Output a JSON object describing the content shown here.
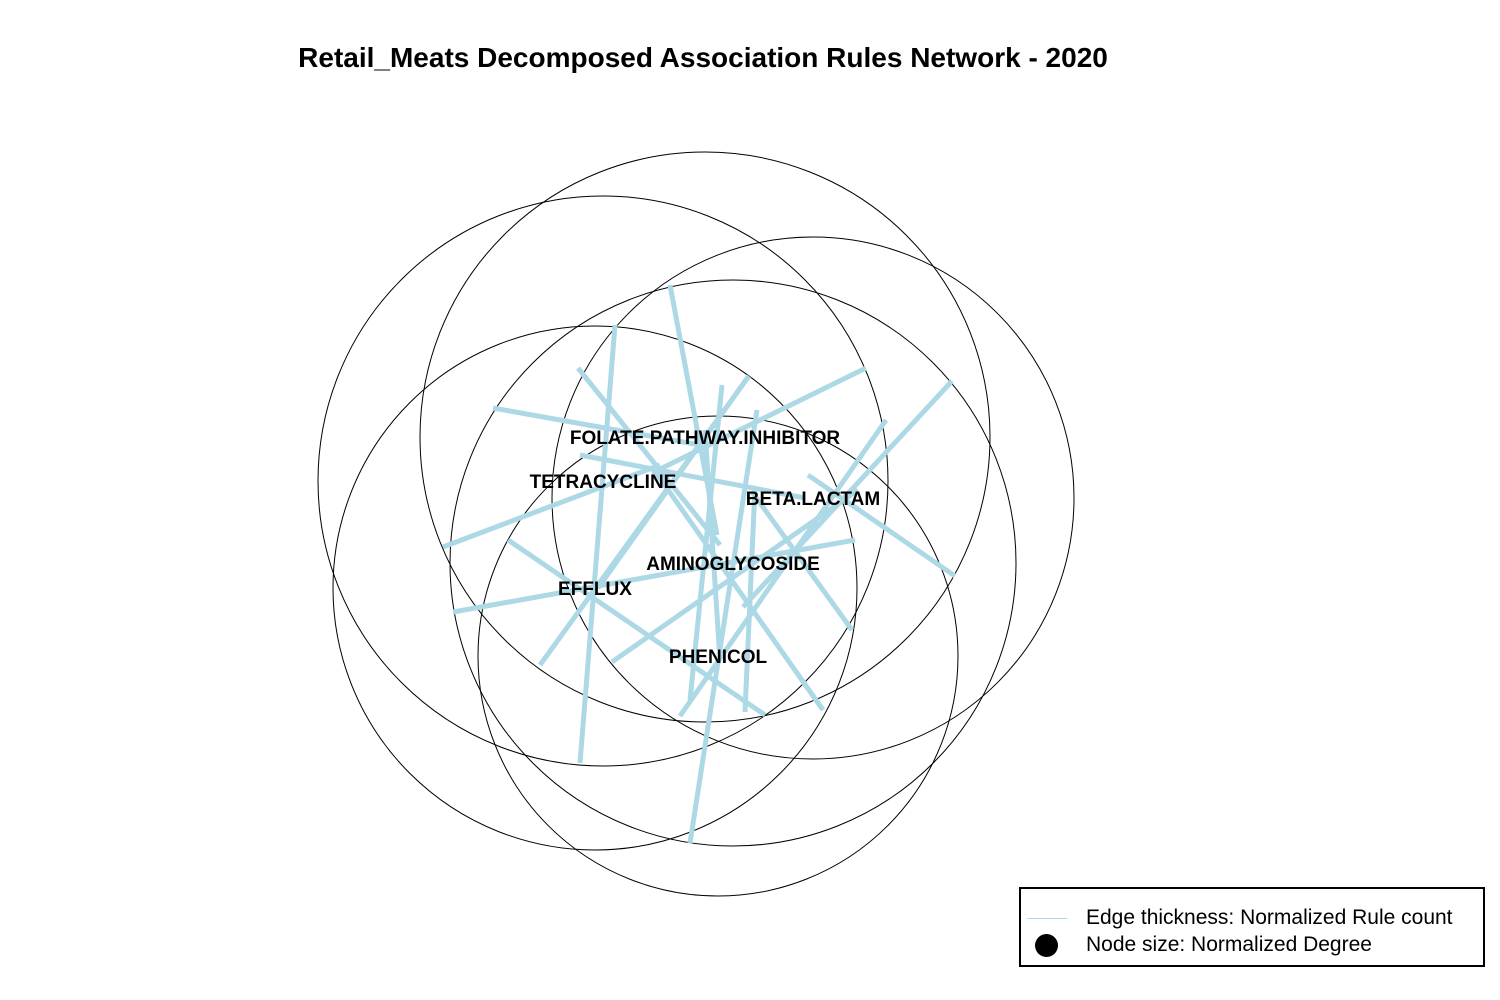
{
  "title": "Retail_Meats Decomposed Association Rules Network - 2020",
  "colors": {
    "edge": "#add8e6",
    "circle_stroke": "#000000",
    "label": "#000000"
  },
  "nodes": [
    {
      "id": "folate",
      "label": "FOLATE.PATHWAY.INHIBITOR"
    },
    {
      "id": "tetracycline",
      "label": "TETRACYCLINE"
    },
    {
      "id": "beta_lactam",
      "label": "BETA.LACTAM"
    },
    {
      "id": "aminoglycoside",
      "label": "AMINOGLYCOSIDE"
    },
    {
      "id": "efflux",
      "label": "EFFLUX"
    },
    {
      "id": "phenicol",
      "label": "PHENICOL"
    }
  ],
  "legend": {
    "edge_label": "Edge thickness: Normalized Rule count",
    "node_label": "Node size: Normalized Degree"
  }
}
